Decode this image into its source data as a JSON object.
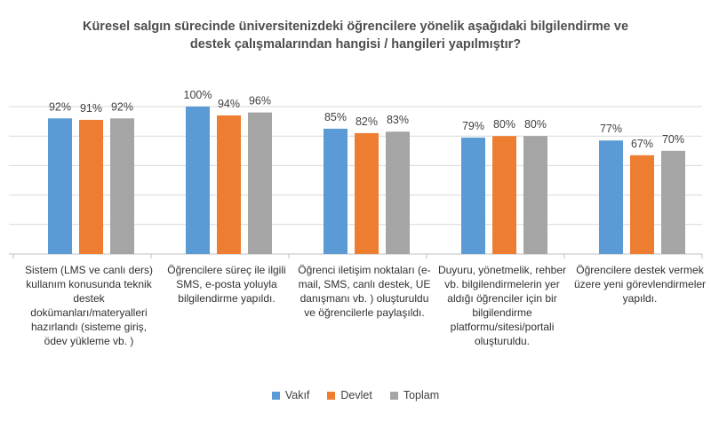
{
  "chart_data": {
    "type": "bar",
    "title_line1": "Küresel salgın sürecinde üniversitenizdeki öğrencilere yönelik aşağıdaki bilgilendirme ve",
    "title_line2": "destek çalışmalarından hangisi / hangileri yapılmıştır?",
    "categories": [
      "Sistem (LMS ve canlı ders) kullanım konusunda teknik destek dokümanları/materyalleri hazırlandı (sisteme giriş, ödev yükleme vb. )",
      "Öğrencilere süreç ile ilgili SMS, e-posta yoluyla bilgilendirme yapıldı.",
      "Öğrenci iletişim noktaları (e-mail, SMS, canlı destek, UE danışmanı vb. ) oluşturuldu ve öğrencilerle paylaşıldı.",
      "Duyuru, yönetmelik, rehber vb. bilgilendirmelerin yer aldığı öğrenciler için bir bilgilendirme platformu/sitesi/portali oluşturuldu.",
      "Öğrencilere destek vermek üzere yeni görevlendirmeler yapıldı."
    ],
    "series": [
      {
        "name": "Vakıf",
        "color": "#5b9bd5",
        "values": [
          92,
          100,
          85,
          79,
          77
        ],
        "labels": [
          "92%",
          "100%",
          "85%",
          "79%",
          "77%"
        ]
      },
      {
        "name": "Devlet",
        "color": "#ed7d31",
        "values": [
          91,
          94,
          82,
          80,
          67
        ],
        "labels": [
          "91%",
          "94%",
          "82%",
          "80%",
          "67%"
        ]
      },
      {
        "name": "Toplam",
        "color": "#a5a5a5",
        "values": [
          92,
          96,
          83,
          80,
          70
        ],
        "labels": [
          "92%",
          "96%",
          "83%",
          "80%",
          "70%"
        ]
      }
    ],
    "ylim": [
      0,
      100
    ],
    "grid": true,
    "legend_position": "bottom"
  }
}
